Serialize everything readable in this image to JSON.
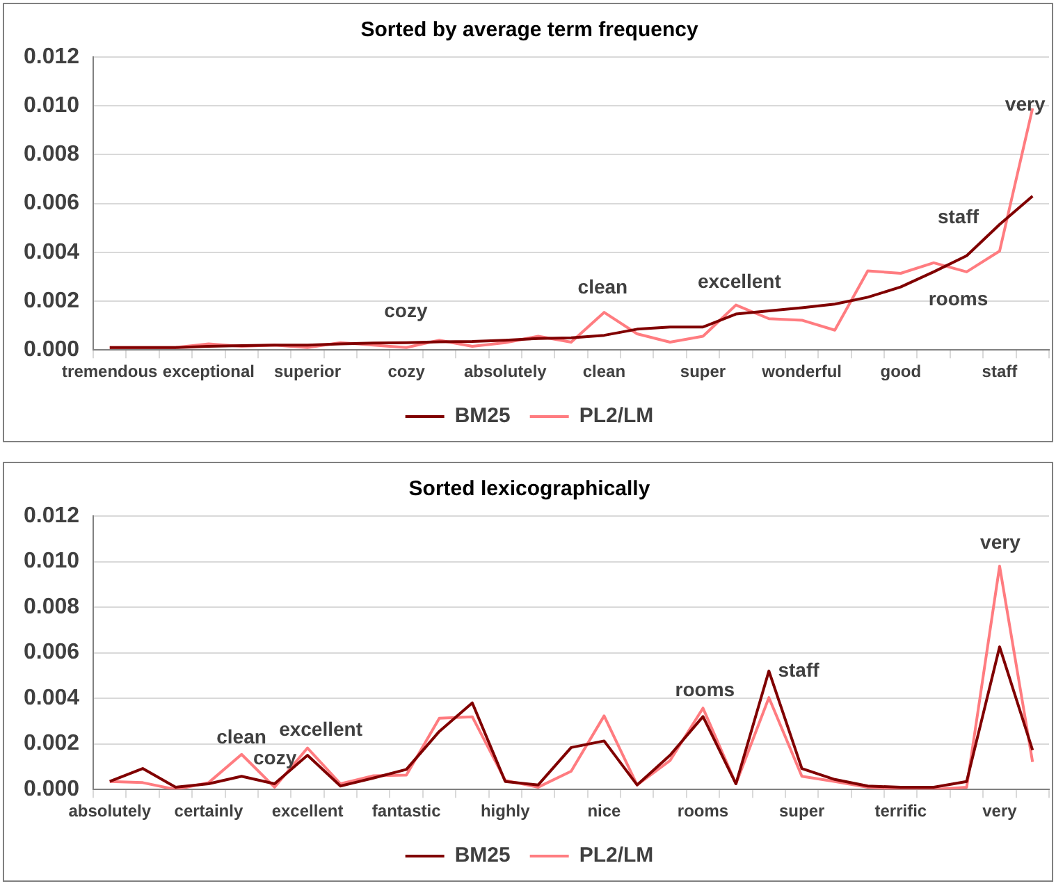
{
  "chart_data": [
    {
      "type": "line",
      "title": "Sorted by average term frequency",
      "categories": [
        "tremendous",
        null,
        null,
        "exceptional",
        null,
        null,
        "superior",
        null,
        null,
        "cozy",
        null,
        null,
        "absolutely",
        null,
        null,
        "clean",
        null,
        null,
        "super",
        null,
        null,
        "wonderful",
        null,
        null,
        "good",
        null,
        null,
        "staff",
        null
      ],
      "series": [
        {
          "name": "BM25",
          "color": "#800000",
          "values": [
            0.0001,
            0.0001,
            0.0001,
            0.00015,
            0.00018,
            0.0002,
            0.0002,
            0.00025,
            0.00028,
            0.0003,
            0.00033,
            0.00035,
            0.0004,
            0.00047,
            0.0005,
            0.0006,
            0.00085,
            0.00094,
            0.00094,
            0.00147,
            0.0016,
            0.00173,
            0.00188,
            0.00216,
            0.00258,
            0.0032,
            0.00386,
            0.00514,
            0.0063
          ]
        },
        {
          "name": "PL2/LM",
          "color": "#ff7c80",
          "values": [
            0.0001,
            0.0001,
            0.0001,
            0.00025,
            0.00015,
            0.0002,
            0.0001,
            0.0003,
            0.0002,
            0.0001,
            0.0004,
            0.00015,
            0.0003,
            0.00056,
            0.00032,
            0.00154,
            0.00066,
            0.00032,
            0.00056,
            0.00184,
            0.00128,
            0.00122,
            0.00081,
            0.00324,
            0.00314,
            0.00357,
            0.0032,
            0.00405,
            0.0099
          ]
        }
      ],
      "ylim": [
        0,
        0.012
      ],
      "yticks": [
        {
          "value": 0,
          "label": "0.000"
        },
        {
          "value": 0.002,
          "label": "0.002"
        },
        {
          "value": 0.004,
          "label": "0.004"
        },
        {
          "value": 0.006,
          "label": "0.006"
        },
        {
          "value": 0.008,
          "label": "0.008"
        },
        {
          "value": 0.01,
          "label": "0.010"
        },
        {
          "value": 0.012,
          "label": "0.012"
        }
      ],
      "annotations": [
        "cozy",
        "clean",
        "excellent",
        "rooms",
        "staff",
        "very"
      ],
      "grid": "y",
      "legend": "bottom",
      "marker": "none",
      "line_style": "solid"
    },
    {
      "type": "line",
      "title": "Sorted lexicographically",
      "categories": [
        "absolutely",
        null,
        null,
        "certainly",
        null,
        null,
        "excellent",
        null,
        null,
        "fantastic",
        null,
        null,
        "highly",
        null,
        null,
        "nice",
        null,
        null,
        "rooms",
        null,
        null,
        "super",
        null,
        null,
        "terrific",
        null,
        null,
        "very",
        null
      ],
      "series": [
        {
          "name": "BM25",
          "color": "#800000",
          "values": [
            0.00035,
            0.00092,
            0.0001,
            0.00025,
            0.00058,
            0.00025,
            0.0015,
            0.00015,
            0.0005,
            0.00088,
            0.00255,
            0.0038,
            0.00035,
            0.0002,
            0.00184,
            0.00213,
            0.0002,
            0.0015,
            0.0032,
            0.00025,
            0.0052,
            0.00092,
            0.00044,
            0.00015,
            0.0001,
            0.0001,
            0.00035,
            0.00626,
            0.00173
          ]
        },
        {
          "name": "PL2/LM",
          "color": "#ff7c80",
          "values": [
            0.00035,
            0.0003,
            0.0,
            0.0003,
            0.00154,
            0.0001,
            0.00182,
            0.00025,
            0.0006,
            0.00063,
            0.00313,
            0.00319,
            0.0004,
            0.0001,
            0.0008,
            0.00323,
            0.0002,
            0.00127,
            0.00357,
            0.00025,
            0.00403,
            0.00058,
            0.00035,
            0.0001,
            0.0,
            0.0,
            0.0001,
            0.0098,
            0.00121
          ]
        }
      ],
      "ylim": [
        0,
        0.012
      ],
      "yticks": [
        {
          "value": 0,
          "label": "0.000"
        },
        {
          "value": 0.002,
          "label": "0.002"
        },
        {
          "value": 0.004,
          "label": "0.004"
        },
        {
          "value": 0.006,
          "label": "0.006"
        },
        {
          "value": 0.008,
          "label": "0.008"
        },
        {
          "value": 0.01,
          "label": "0.010"
        },
        {
          "value": 0.012,
          "label": "0.012"
        }
      ],
      "annotations": [
        "clean",
        "cozy",
        "excellent",
        "rooms",
        "staff",
        "very"
      ],
      "grid": "y",
      "legend": "bottom",
      "marker": "none",
      "line_style": "solid"
    }
  ]
}
